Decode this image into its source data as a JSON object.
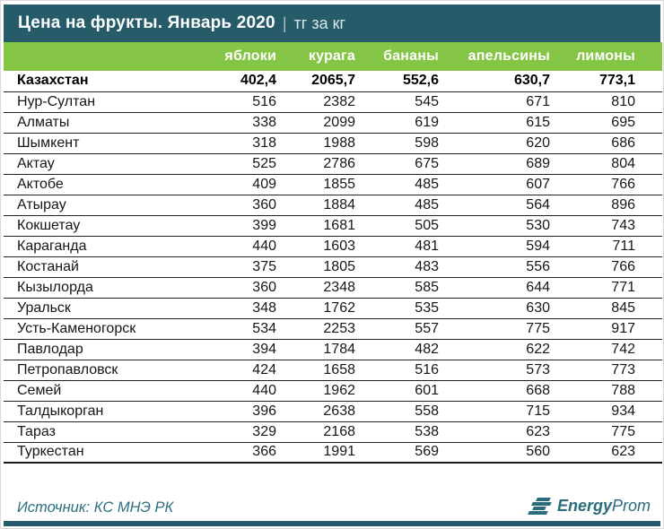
{
  "title": {
    "main": "Цена на фрукты. Январь 2020",
    "separator": "|",
    "unit": "тг за кг"
  },
  "table": {
    "columns": [
      "яблоки",
      "курага",
      "бананы",
      "апельсины",
      "лимоны"
    ],
    "summary_row": {
      "label": "Казахстан",
      "values": [
        "402,4",
        "2065,7",
        "552,6",
        "630,7",
        "773,1"
      ]
    },
    "rows": [
      {
        "label": "Нур-Султан",
        "values": [
          "516",
          "2382",
          "545",
          "671",
          "810"
        ]
      },
      {
        "label": "Алматы",
        "values": [
          "338",
          "2099",
          "619",
          "615",
          "695"
        ]
      },
      {
        "label": "Шымкент",
        "values": [
          "318",
          "1988",
          "598",
          "620",
          "686"
        ]
      },
      {
        "label": "Актау",
        "values": [
          "525",
          "2786",
          "675",
          "689",
          "804"
        ]
      },
      {
        "label": "Актобе",
        "values": [
          "409",
          "1855",
          "485",
          "607",
          "766"
        ]
      },
      {
        "label": "Атырау",
        "values": [
          "360",
          "1884",
          "485",
          "564",
          "896"
        ]
      },
      {
        "label": "Кокшетау",
        "values": [
          "399",
          "1681",
          "505",
          "530",
          "743"
        ]
      },
      {
        "label": "Караганда",
        "values": [
          "440",
          "1603",
          "481",
          "594",
          "711"
        ]
      },
      {
        "label": "Костанай",
        "values": [
          "375",
          "1805",
          "483",
          "556",
          "766"
        ]
      },
      {
        "label": "Кызылорда",
        "values": [
          "360",
          "2348",
          "585",
          "644",
          "771"
        ]
      },
      {
        "label": "Уральск",
        "values": [
          "348",
          "1762",
          "535",
          "630",
          "845"
        ]
      },
      {
        "label": "Усть-Каменогорск",
        "values": [
          "534",
          "2253",
          "557",
          "775",
          "917"
        ]
      },
      {
        "label": "Павлодар",
        "values": [
          "394",
          "1784",
          "482",
          "622",
          "742"
        ]
      },
      {
        "label": "Петропавловск",
        "values": [
          "424",
          "1658",
          "516",
          "573",
          "773"
        ]
      },
      {
        "label": "Семей",
        "values": [
          "440",
          "1962",
          "601",
          "668",
          "788"
        ]
      },
      {
        "label": "Талдыкорган",
        "values": [
          "396",
          "2638",
          "558",
          "715",
          "934"
        ]
      },
      {
        "label": "Тараз",
        "values": [
          "329",
          "2168",
          "538",
          "623",
          "775"
        ]
      },
      {
        "label": "Туркестан",
        "values": [
          "366",
          "1991",
          "569",
          "560",
          "623"
        ]
      }
    ]
  },
  "footer": {
    "source": "Источник: КС МНЭ РК",
    "logo_bold": "Energy",
    "logo_light": "Prom"
  },
  "colors": {
    "header_teal": "#265b6a",
    "header_green": "#85c545",
    "footer_teal": "#2a6f80",
    "text_black": "#161616"
  },
  "chart_data": {
    "type": "table",
    "title": "Цена на фрукты. Январь 2020",
    "unit": "тг за кг",
    "columns": [
      "яблоки",
      "курага",
      "бананы",
      "апельсины",
      "лимоны"
    ],
    "rows": [
      [
        "Казахстан",
        402.4,
        2065.7,
        552.6,
        630.7,
        773.1
      ],
      [
        "Нур-Султан",
        516,
        2382,
        545,
        671,
        810
      ],
      [
        "Алматы",
        338,
        2099,
        619,
        615,
        695
      ],
      [
        "Шымкент",
        318,
        1988,
        598,
        620,
        686
      ],
      [
        "Актау",
        525,
        2786,
        675,
        689,
        804
      ],
      [
        "Актобе",
        409,
        1855,
        485,
        607,
        766
      ],
      [
        "Атырау",
        360,
        1884,
        485,
        564,
        896
      ],
      [
        "Кокшетау",
        399,
        1681,
        505,
        530,
        743
      ],
      [
        "Караганда",
        440,
        1603,
        481,
        594,
        711
      ],
      [
        "Костанай",
        375,
        1805,
        483,
        556,
        766
      ],
      [
        "Кызылорда",
        360,
        2348,
        585,
        644,
        771
      ],
      [
        "Уральск",
        348,
        1762,
        535,
        630,
        845
      ],
      [
        "Усть-Каменогорск",
        534,
        2253,
        557,
        775,
        917
      ],
      [
        "Павлодар",
        394,
        1784,
        482,
        622,
        742
      ],
      [
        "Петропавловск",
        424,
        1658,
        516,
        573,
        773
      ],
      [
        "Семей",
        440,
        1962,
        601,
        668,
        788
      ],
      [
        "Талдыкорган",
        396,
        2638,
        558,
        715,
        934
      ],
      [
        "Тараз",
        329,
        2168,
        538,
        623,
        775
      ],
      [
        "Туркестан",
        366,
        1991,
        569,
        560,
        623
      ]
    ],
    "source": "Источник: КС МНЭ РК"
  }
}
